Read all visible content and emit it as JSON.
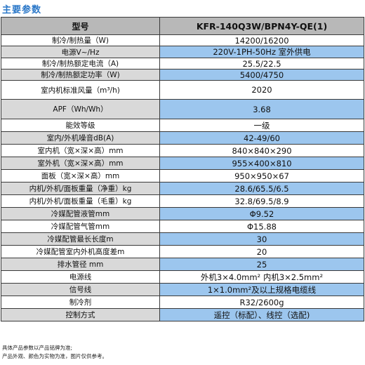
{
  "title": "主要参数",
  "table": {
    "header": {
      "label": "型号",
      "value": "KFR-140Q3W/BPN4Y-QE(1)"
    },
    "rows": [
      {
        "label": "制冷/制热量（W)",
        "value": "14200/16200",
        "shade": "w",
        "h": 16
      },
      {
        "label": "电源V~/Hz",
        "value": "220V-1PH-50Hz 室外供电",
        "shade": "b",
        "h": 16
      },
      {
        "label": "制冷/制热额定电流（A)",
        "value": "25.5/22.5",
        "shade": "w",
        "h": 16
      },
      {
        "label": "制冷/制热额定功率（W)",
        "value": "5400/4750",
        "shade": "b",
        "h": 16
      },
      {
        "label": "室内机标准风量（m³/h)",
        "value": "2020",
        "shade": "w",
        "h": 27
      },
      {
        "label": "APF（Wh/Wh）",
        "value": "3.68",
        "shade": "b",
        "h": 28
      },
      {
        "label": "能效等级",
        "value": "一级",
        "shade": "w",
        "h": 18
      },
      {
        "label": "室内/外机噪音dB(A)",
        "value": "42-49/60",
        "shade": "b",
        "h": 18
      },
      {
        "label": "室内机（宽×深×高）mm",
        "value": "840×840×290",
        "shade": "w",
        "h": 18
      },
      {
        "label": "室外机（宽×深×高）mm",
        "value": "955×400×810",
        "shade": "b",
        "h": 18
      },
      {
        "label": "面板（宽×深×高）mm",
        "value": "950×950×67",
        "shade": "w",
        "h": 18
      },
      {
        "label": "内机/外机/面板重量（净重）kg",
        "value": "28.6/65.5/6.5",
        "shade": "b",
        "h": 18
      },
      {
        "label": "内机/外机/面板重量（毛重）kg",
        "value": "32.8/69.5/8.9",
        "shade": "w",
        "h": 18
      },
      {
        "label": "冷媒配管液管mm",
        "value": "Φ9.52",
        "shade": "b",
        "h": 18
      },
      {
        "label": "冷媒配管气管mm",
        "value": "Φ15.88",
        "shade": "w",
        "h": 18
      },
      {
        "label": "冷媒配管最长长度m",
        "value": "30",
        "shade": "b",
        "h": 18
      },
      {
        "label": "冷媒配管室内外机高度差m",
        "value": "20",
        "shade": "w",
        "h": 18
      },
      {
        "label": "排水管径 mm",
        "value": "25",
        "shade": "b",
        "h": 18
      },
      {
        "label": "电源线",
        "value": "外机3×4.0mm² 内机3×2.5mm²",
        "shade": "w",
        "h": 18
      },
      {
        "label": "信号线",
        "value": "1×1.0mm²及以上规格电缆线",
        "shade": "b",
        "h": 18
      },
      {
        "label": "制冷剂",
        "value": "R32/2600g",
        "shade": "w",
        "h": 18
      },
      {
        "label": "控制方式",
        "value": "遥控（标配）、线控（选配)",
        "shade": "b",
        "h": 18
      }
    ]
  },
  "notes": [
    "具体产品参数以产品铭牌为准;",
    "产品外观、颜色为实物为准，图片仅供参考。"
  ]
}
